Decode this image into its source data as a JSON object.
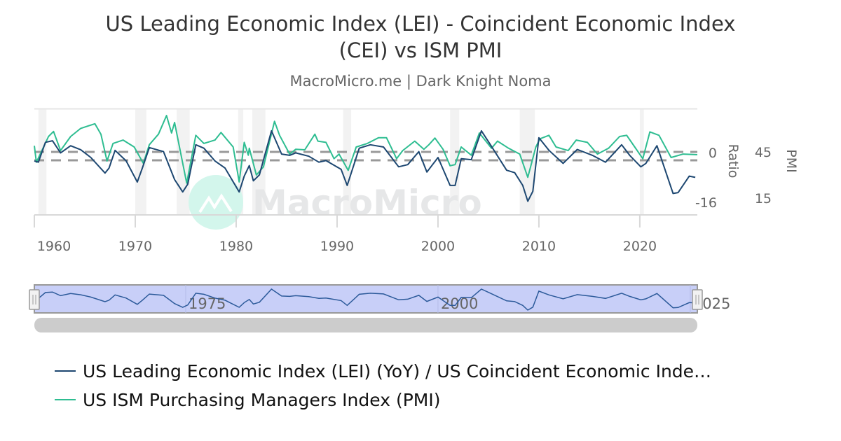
{
  "chart_data": {
    "type": "line",
    "title": "US Leading Economic Index (LEI) - Coincident Economic Index (CEI) vs ISM PMI",
    "title_lines": [
      "US Leading Economic Index (LEI) - Coincident Economic Index",
      "(CEI) vs ISM PMI"
    ],
    "subtitle": "MacroMicro.me | Dark Knight Noma",
    "watermark": "MacroMicro",
    "x_ticks": [
      "1960",
      "1970",
      "1980",
      "1990",
      "2000",
      "2010",
      "2020"
    ],
    "xlim": [
      1960,
      2025.7
    ],
    "grid": true,
    "legend_position": "bottom",
    "colors": {
      "lei": "#1d4771",
      "pmi": "#2ebd91",
      "recession": "#f2f2f2",
      "dashed": "#999999",
      "navigator": "#c8cff8"
    },
    "y_axes": [
      {
        "label": "Ratio",
        "ticks": [
          "0",
          "-16"
        ],
        "tick_values": [
          0,
          -16
        ],
        "range": [
          -17.6,
          16.7
        ],
        "reference_line": 0
      },
      {
        "label": "PMI",
        "ticks": [
          "45",
          "15"
        ],
        "tick_values": [
          45,
          15
        ],
        "range": [
          9.1,
          78.2
        ],
        "reference_line": 50
      }
    ],
    "recessions": [
      [
        1960.4,
        1961.2
      ],
      [
        1970.0,
        1971.1
      ],
      [
        1974.1,
        1975.4
      ],
      [
        1980.2,
        1980.7
      ],
      [
        1981.6,
        1982.9
      ],
      [
        1990.6,
        1991.4
      ],
      [
        2001.2,
        2002.1
      ],
      [
        2008.1,
        2009.6
      ],
      [
        2020.0,
        2020.4
      ]
    ],
    "series": [
      {
        "name": "US Leading Economic Index (LEI) (YoY) / US Coincident Economic Inde…",
        "axis": 0,
        "points": [
          [
            1960.0,
            -0.2
          ],
          [
            1960.4,
            -0.6
          ],
          [
            1961.1,
            5.8
          ],
          [
            1961.8,
            6.3
          ],
          [
            1962.6,
            2.4
          ],
          [
            1963.6,
            4.7
          ],
          [
            1964.6,
            3.4
          ],
          [
            1965.6,
            0.9
          ],
          [
            1967.0,
            -4.1
          ],
          [
            1967.4,
            -2.5
          ],
          [
            1968.0,
            3.2
          ],
          [
            1969.1,
            -0.2
          ],
          [
            1970.2,
            -7.0
          ],
          [
            1970.7,
            -2.5
          ],
          [
            1971.4,
            4.1
          ],
          [
            1972.8,
            2.8
          ],
          [
            1973.9,
            -6.2
          ],
          [
            1974.7,
            -10.2
          ],
          [
            1975.2,
            -7.7
          ],
          [
            1976.0,
            5.0
          ],
          [
            1976.8,
            3.9
          ],
          [
            1977.9,
            -0.2
          ],
          [
            1978.9,
            -2.5
          ],
          [
            1980.3,
            -10.2
          ],
          [
            1980.8,
            -5.1
          ],
          [
            1981.3,
            -1.7
          ],
          [
            1981.7,
            -6.6
          ],
          [
            1982.3,
            -4.7
          ],
          [
            1983.5,
            9.5
          ],
          [
            1984.5,
            2.0
          ],
          [
            1985.3,
            1.6
          ],
          [
            1985.9,
            2.4
          ],
          [
            1987.2,
            1.3
          ],
          [
            1988.2,
            -0.6
          ],
          [
            1988.9,
            -0.1
          ],
          [
            1990.4,
            -2.9
          ],
          [
            1991.0,
            -8.1
          ],
          [
            1992.2,
            3.9
          ],
          [
            1993.3,
            5.0
          ],
          [
            1994.6,
            4.3
          ],
          [
            1996.1,
            -2.1
          ],
          [
            1997.0,
            -1.4
          ],
          [
            1998.1,
            2.8
          ],
          [
            1998.9,
            -3.8
          ],
          [
            2000.0,
            0.9
          ],
          [
            2001.2,
            -8.1
          ],
          [
            2001.7,
            -8.1
          ],
          [
            2002.3,
            0.5
          ],
          [
            2003.3,
            0.2
          ],
          [
            2004.3,
            9.5
          ],
          [
            2005.2,
            5.0
          ],
          [
            2006.8,
            -3.2
          ],
          [
            2007.6,
            -4.0
          ],
          [
            2008.4,
            -8.1
          ],
          [
            2008.9,
            -13.2
          ],
          [
            2009.4,
            -10.0
          ],
          [
            2010.0,
            7.3
          ],
          [
            2011.0,
            3.2
          ],
          [
            2012.4,
            -1.0
          ],
          [
            2013.8,
            3.5
          ],
          [
            2015.3,
            1.6
          ],
          [
            2016.6,
            -0.6
          ],
          [
            2018.2,
            5.0
          ],
          [
            2019.0,
            1.6
          ],
          [
            2020.1,
            -2.1
          ],
          [
            2020.6,
            -1.0
          ],
          [
            2021.7,
            4.7
          ],
          [
            2023.3,
            -10.7
          ],
          [
            2023.8,
            -10.4
          ],
          [
            2024.9,
            -5.1
          ],
          [
            2025.5,
            -5.5
          ]
        ]
      },
      {
        "name": "US ISM Purchasing Managers Index (PMI)",
        "axis": 1,
        "points": [
          [
            1960.0,
            54.0
          ],
          [
            1960.2,
            43.3
          ],
          [
            1961.4,
            60.0
          ],
          [
            1961.9,
            63.3
          ],
          [
            1962.6,
            50.9
          ],
          [
            1963.6,
            60.0
          ],
          [
            1964.6,
            65.3
          ],
          [
            1966.0,
            68.3
          ],
          [
            1966.6,
            61.5
          ],
          [
            1967.2,
            44.1
          ],
          [
            1967.8,
            55.5
          ],
          [
            1968.8,
            57.7
          ],
          [
            1969.9,
            53.2
          ],
          [
            1970.8,
            42.6
          ],
          [
            1971.4,
            54.7
          ],
          [
            1972.3,
            61.5
          ],
          [
            1973.1,
            73.6
          ],
          [
            1973.6,
            62.3
          ],
          [
            1973.9,
            69.1
          ],
          [
            1975.1,
            29.7
          ],
          [
            1976.0,
            60.8
          ],
          [
            1976.8,
            55.5
          ],
          [
            1977.9,
            57.7
          ],
          [
            1978.5,
            62.6
          ],
          [
            1979.7,
            53.2
          ],
          [
            1980.3,
            30.5
          ],
          [
            1980.8,
            56.2
          ],
          [
            1981.2,
            47.9
          ],
          [
            1981.3,
            52.4
          ],
          [
            1982.0,
            35.0
          ],
          [
            1982.7,
            40.3
          ],
          [
            1983.8,
            69.9
          ],
          [
            1984.3,
            60.8
          ],
          [
            1985.3,
            48.6
          ],
          [
            1985.9,
            51.7
          ],
          [
            1986.8,
            51.4
          ],
          [
            1987.8,
            61.5
          ],
          [
            1988.1,
            57.0
          ],
          [
            1988.9,
            56.2
          ],
          [
            1989.7,
            45.6
          ],
          [
            1990.2,
            48.6
          ],
          [
            1991.1,
            38.0
          ],
          [
            1991.9,
            53.2
          ],
          [
            1993.0,
            55.5
          ],
          [
            1994.1,
            59.2
          ],
          [
            1994.9,
            59.2
          ],
          [
            1995.9,
            45.6
          ],
          [
            1996.5,
            50.9
          ],
          [
            1997.7,
            57.0
          ],
          [
            1998.6,
            51.7
          ],
          [
            1999.1,
            54.7
          ],
          [
            1999.7,
            59.0
          ],
          [
            2000.5,
            51.7
          ],
          [
            2001.2,
            41.0
          ],
          [
            2001.7,
            41.8
          ],
          [
            2002.3,
            53.2
          ],
          [
            2003.3,
            47.9
          ],
          [
            2004.1,
            62.3
          ],
          [
            2005.3,
            52.4
          ],
          [
            2005.9,
            57.0
          ],
          [
            2007.0,
            52.4
          ],
          [
            2008.1,
            48.6
          ],
          [
            2008.9,
            33.5
          ],
          [
            2009.7,
            53.2
          ],
          [
            2010.1,
            58.5
          ],
          [
            2011.0,
            60.8
          ],
          [
            2011.7,
            53.2
          ],
          [
            2012.9,
            50.9
          ],
          [
            2013.7,
            57.7
          ],
          [
            2014.8,
            56.2
          ],
          [
            2015.8,
            48.6
          ],
          [
            2016.9,
            52.4
          ],
          [
            2018.0,
            60.0
          ],
          [
            2018.7,
            60.8
          ],
          [
            2019.5,
            53.2
          ],
          [
            2020.3,
            45.6
          ],
          [
            2021.0,
            63.0
          ],
          [
            2021.9,
            60.8
          ],
          [
            2023.1,
            46.4
          ],
          [
            2024.3,
            48.6
          ],
          [
            2025.7,
            48.2
          ]
        ]
      }
    ],
    "navigator": {
      "labels": [
        "1975",
        "2000",
        "2025"
      ],
      "label_years": [
        1975,
        2000,
        2025
      ]
    }
  }
}
